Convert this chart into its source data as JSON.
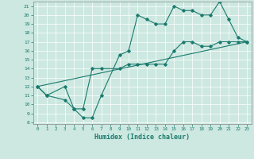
{
  "xlabel": "Humidex (Indice chaleur)",
  "xlim": [
    -0.5,
    23.5
  ],
  "ylim": [
    7.8,
    21.5
  ],
  "xticks": [
    0,
    1,
    2,
    3,
    4,
    5,
    6,
    7,
    8,
    9,
    10,
    11,
    12,
    13,
    14,
    15,
    16,
    17,
    18,
    19,
    20,
    21,
    22,
    23
  ],
  "yticks": [
    8,
    9,
    10,
    11,
    12,
    13,
    14,
    15,
    16,
    17,
    18,
    19,
    20,
    21
  ],
  "bg_color": "#cce8e0",
  "line_color": "#1a7a6e",
  "grid_color": "#ffffff",
  "line1_x": [
    0,
    1,
    3,
    4,
    5,
    6,
    7,
    9,
    10,
    11,
    12,
    13,
    14,
    15,
    16,
    17,
    18,
    19,
    20,
    21,
    22,
    23
  ],
  "line1_y": [
    12,
    11,
    10.5,
    9.5,
    8.5,
    8.5,
    11.0,
    15.5,
    16.0,
    20,
    19.5,
    19,
    19,
    21,
    20.5,
    20.5,
    20,
    20,
    21.5,
    19.5,
    17.5,
    17
  ],
  "line2_x": [
    0,
    1,
    3,
    4,
    5,
    6,
    7,
    9,
    10,
    11,
    12,
    13,
    14,
    15,
    16,
    17,
    18,
    19,
    20,
    21,
    22,
    23
  ],
  "line2_y": [
    12,
    11,
    12,
    9.5,
    9.5,
    14.0,
    14.0,
    14.0,
    14.5,
    14.5,
    14.5,
    14.5,
    14.5,
    16.0,
    17,
    17,
    16.5,
    16.5,
    17,
    17,
    17,
    17
  ],
  "line3_x": [
    0,
    23
  ],
  "line3_y": [
    12,
    17
  ]
}
